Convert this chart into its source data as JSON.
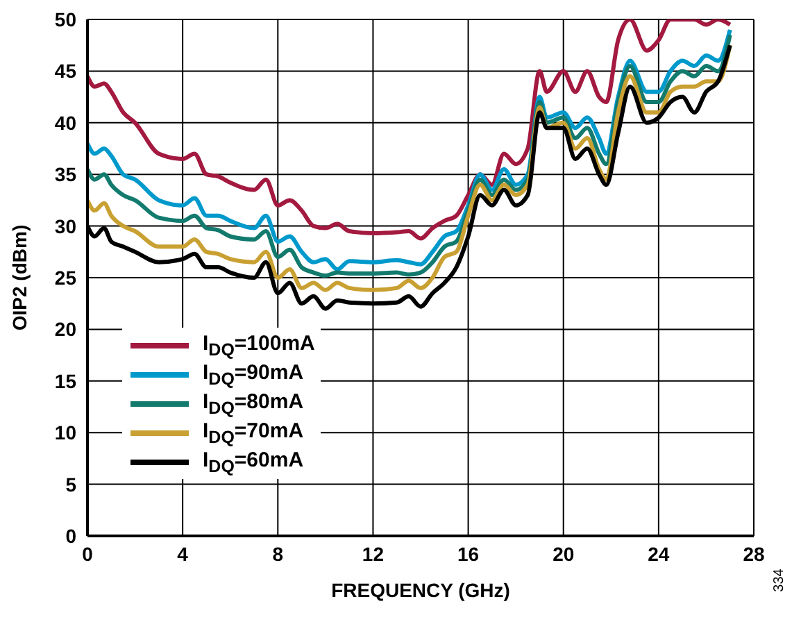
{
  "chart_data": {
    "type": "line",
    "xlabel": "FREQUENCY (GHz)",
    "ylabel": "OIP2 (dBm)",
    "annotations": [
      "334"
    ],
    "x": [
      0,
      0.3,
      0.7,
      1,
      1.5,
      2,
      3,
      4,
      4.5,
      5,
      5.5,
      6,
      7,
      7.5,
      8,
      8.5,
      9,
      9.5,
      10,
      10.5,
      11,
      12,
      13,
      13.5,
      14,
      14.5,
      15,
      15.5,
      16,
      16.5,
      17,
      17.5,
      18,
      18.5,
      19,
      19.3,
      20,
      20.5,
      21,
      21.5,
      21.8,
      22.3,
      22.8,
      23.5,
      24,
      24.5,
      25,
      25.5,
      26,
      26.5,
      27
    ],
    "series": [
      {
        "name": "I$_{DQ}$=100mA",
        "color": "#a3193f",
        "values": [
          44.5,
          43.5,
          43.8,
          43,
          41,
          40,
          37,
          36.5,
          37,
          35,
          34.8,
          34.2,
          33.5,
          34.5,
          32,
          32.5,
          31.5,
          30,
          29.8,
          30.2,
          29.5,
          29.3,
          29.4,
          29.5,
          28.8,
          29.8,
          30.5,
          31,
          33,
          35,
          34,
          37,
          36,
          37.5,
          45,
          43,
          45,
          43,
          45,
          42.5,
          42,
          48,
          50,
          47,
          48,
          50,
          50,
          50,
          49.5,
          50,
          49.5
        ]
      },
      {
        "name": "I$_{DQ}$=90mA",
        "color": "#0099cc",
        "values": [
          38,
          37,
          37.5,
          36.8,
          35,
          34.5,
          32.5,
          32,
          32.7,
          31,
          31,
          30.5,
          29.8,
          31,
          28.5,
          29,
          27.5,
          26.5,
          26.8,
          25.8,
          26.6,
          26.5,
          26.7,
          26.5,
          26.3,
          27.5,
          29,
          29.5,
          32,
          35,
          33.5,
          35.5,
          34,
          35,
          42.5,
          40.5,
          41,
          39.5,
          40.5,
          38.5,
          37,
          42.5,
          46,
          43,
          43,
          45,
          46,
          45.5,
          46.5,
          46,
          49
        ]
      },
      {
        "name": "I$_{DQ}$=80mA",
        "color": "#137a6e",
        "values": [
          35.5,
          34.5,
          35,
          34,
          33,
          32.5,
          30.8,
          30.5,
          31,
          29.8,
          29.6,
          29,
          28.7,
          29.5,
          27,
          27.7,
          26,
          25.5,
          25.2,
          25.5,
          25.4,
          25.4,
          25.5,
          25.3,
          25.5,
          26.5,
          28,
          28.5,
          31.5,
          34.5,
          33,
          34.5,
          33.5,
          34.5,
          42,
          40,
          40.5,
          38.5,
          39.5,
          37,
          36,
          42,
          45.5,
          42,
          42,
          44,
          45,
          44.5,
          45.5,
          45,
          48.5
        ]
      },
      {
        "name": "I$_{DQ}$=70mA",
        "color": "#c9a032",
        "values": [
          32.5,
          31.5,
          32.2,
          31,
          30,
          29.5,
          28,
          28,
          28.7,
          27.5,
          27.3,
          26.8,
          26.5,
          27.5,
          25,
          25.8,
          24,
          24.5,
          23.8,
          24.5,
          24,
          23.8,
          24,
          24.7,
          24,
          25,
          27,
          27.5,
          31,
          34,
          32.5,
          34,
          33,
          34,
          41.5,
          39.5,
          40,
          37.5,
          38.5,
          35.5,
          34.5,
          41,
          44.5,
          41,
          41,
          43,
          43.5,
          43.5,
          44,
          44,
          47.5
        ]
      },
      {
        "name": "I$_{DQ}$=60mA",
        "color": "#000000",
        "values": [
          30,
          29,
          29.8,
          28.5,
          28,
          27.5,
          26.5,
          26.8,
          27.3,
          26,
          26,
          25.5,
          25,
          26.5,
          23.5,
          24.5,
          22.5,
          23.2,
          22,
          22.8,
          22.6,
          22.5,
          22.6,
          23.2,
          22.2,
          23.5,
          24.5,
          26,
          29,
          33,
          32,
          33.5,
          32,
          33,
          41,
          39.5,
          39.5,
          36.5,
          37.5,
          35,
          34,
          39,
          43.5,
          40,
          40.5,
          42,
          42.5,
          41,
          43,
          44,
          47.5
        ]
      }
    ],
    "xlim": [
      0,
      28
    ],
    "xticks": [
      0,
      4,
      8,
      12,
      16,
      20,
      24,
      28
    ],
    "ylim": [
      0,
      50
    ],
    "yticks": [
      0,
      5,
      10,
      15,
      20,
      25,
      30,
      35,
      40,
      45,
      50
    ],
    "grid": true,
    "legend": "left",
    "line_style": "solid",
    "marker": "none"
  }
}
